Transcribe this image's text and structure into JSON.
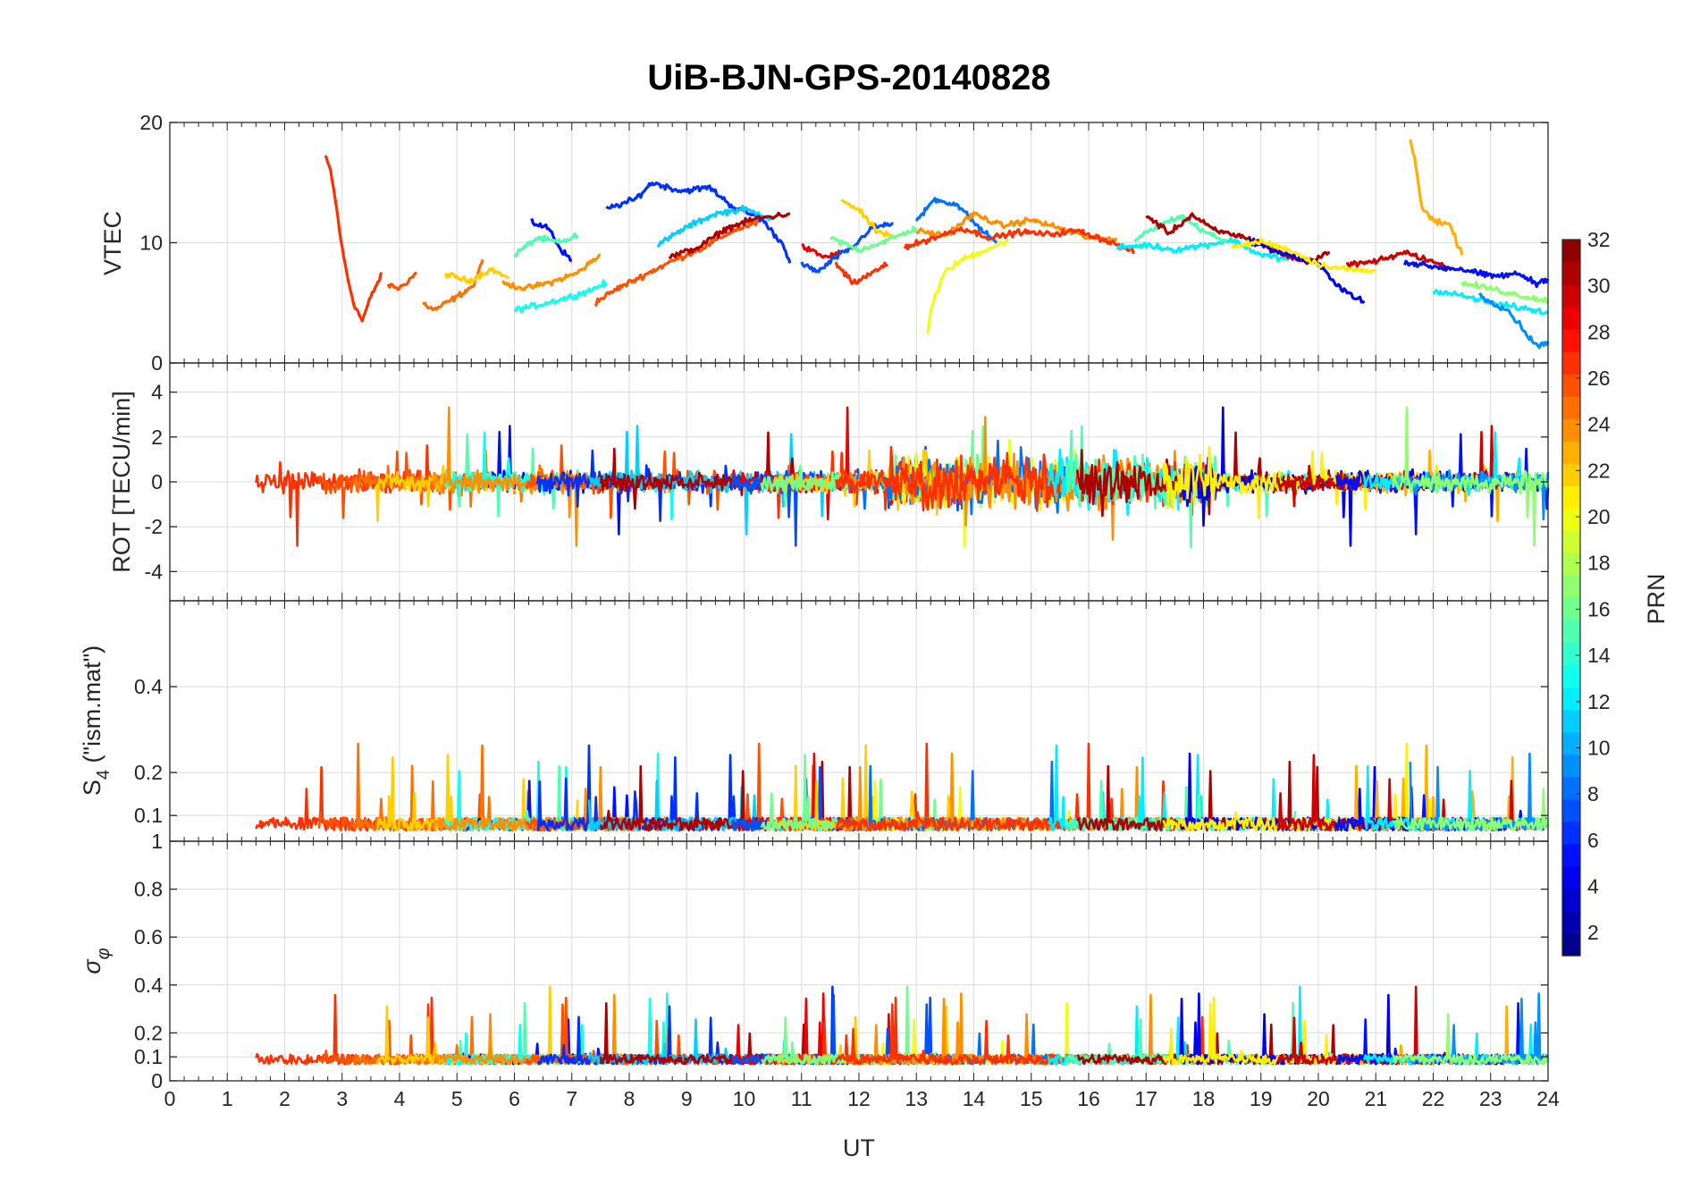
{
  "chart_data": {
    "type": "line",
    "title": "UiB-BJN-GPS-20140828",
    "xlabel": "UT",
    "xlim": [
      0,
      24
    ],
    "x_ticks": [
      "0",
      "1",
      "2",
      "3",
      "4",
      "5",
      "6",
      "7",
      "8",
      "9",
      "10",
      "11",
      "12",
      "13",
      "14",
      "15",
      "16",
      "17",
      "18",
      "19",
      "20",
      "21",
      "22",
      "23",
      "24"
    ],
    "grid": true,
    "panels": [
      {
        "id": "vtec",
        "ylabel": "VTEC",
        "ylim": [
          0,
          20
        ],
        "y_ticks": [
          {
            "v": 0,
            "label": "0"
          },
          {
            "v": 10,
            "label": "10"
          },
          {
            "v": 20,
            "label": "20"
          }
        ]
      },
      {
        "id": "rot",
        "ylabel": "ROT [TECU/min]",
        "ylim": [
          -5.3,
          5.3
        ],
        "y_ticks": [
          {
            "v": -4,
            "label": "-4"
          },
          {
            "v": -2,
            "label": "-2"
          },
          {
            "v": 0,
            "label": "0"
          },
          {
            "v": 2,
            "label": "2"
          },
          {
            "v": 4,
            "label": "4"
          }
        ]
      },
      {
        "id": "s4",
        "ylabel_main": "S",
        "ylabel_sub": "4",
        "ylabel_rest": " (\"ism.mat\")",
        "ylim": [
          0.04,
          0.6
        ],
        "y_ticks": [
          {
            "v": 0.1,
            "label": "0.1"
          },
          {
            "v": 0.2,
            "label": "0.2"
          },
          {
            "v": 0.4,
            "label": "0.4"
          }
        ]
      },
      {
        "id": "sigma",
        "ylabel_main": "σ",
        "ylabel_sub": "φ",
        "ylim": [
          0,
          1
        ],
        "y_ticks": [
          {
            "v": 0,
            "label": "0"
          },
          {
            "v": 0.1,
            "label": "0.1"
          },
          {
            "v": 0.2,
            "label": "0.2"
          },
          {
            "v": 0.4,
            "label": "0.4"
          },
          {
            "v": 0.6,
            "label": "0.6"
          },
          {
            "v": 0.8,
            "label": "0.8"
          },
          {
            "v": 1,
            "label": "1"
          }
        ]
      }
    ],
    "colorbar": {
      "label": "PRN",
      "range": [
        1,
        32
      ],
      "colormap": "jet",
      "ticks": [
        "2",
        "4",
        "6",
        "8",
        "10",
        "12",
        "14",
        "16",
        "18",
        "20",
        "22",
        "24",
        "26",
        "28",
        "30",
        "32"
      ]
    },
    "series": [
      {
        "prn": 27,
        "vtec": [
          [
            2.7,
            17.2
          ],
          [
            2.8,
            16
          ],
          [
            2.9,
            13
          ],
          [
            3.0,
            9.5
          ],
          [
            3.1,
            7
          ],
          [
            3.2,
            5
          ],
          [
            3.35,
            3.5
          ],
          [
            3.5,
            5.5
          ],
          [
            3.6,
            6.5
          ],
          [
            3.7,
            7.4
          ]
        ]
      },
      {
        "prn": 26,
        "vtec": [
          [
            3.8,
            6.5
          ],
          [
            4.0,
            6.2
          ],
          [
            4.3,
            7.5
          ]
        ]
      },
      {
        "prn": 25,
        "vtec": [
          [
            4.4,
            5.0
          ],
          [
            4.6,
            4.4
          ],
          [
            5.0,
            5.5
          ],
          [
            5.3,
            6.5
          ],
          [
            5.45,
            8.6
          ]
        ]
      },
      {
        "prn": 22,
        "vtec": [
          [
            4.8,
            7.4
          ],
          [
            5.2,
            6.8
          ],
          [
            5.6,
            7.8
          ],
          [
            5.9,
            7.0
          ]
        ]
      },
      {
        "prn": 5,
        "vtec": [
          [
            6.3,
            11.7
          ],
          [
            6.6,
            11.2
          ],
          [
            6.8,
            9.5
          ],
          [
            7.0,
            8.5
          ]
        ]
      },
      {
        "prn": 15,
        "vtec": [
          [
            6.0,
            9.0
          ],
          [
            6.4,
            10.4
          ],
          [
            6.8,
            10.0
          ],
          [
            7.1,
            10.6
          ]
        ]
      },
      {
        "prn": 13,
        "vtec": [
          [
            6.0,
            4.4
          ],
          [
            6.4,
            4.8
          ],
          [
            6.9,
            5.4
          ],
          [
            7.3,
            6.0
          ],
          [
            7.6,
            6.7
          ]
        ]
      },
      {
        "prn": 24,
        "vtec": [
          [
            5.8,
            6.6
          ],
          [
            6.2,
            6.2
          ],
          [
            6.7,
            6.8
          ],
          [
            7.1,
            7.5
          ],
          [
            7.5,
            9.0
          ]
        ]
      },
      {
        "prn": 26,
        "vtec": [
          [
            7.4,
            5.0
          ],
          [
            7.8,
            6.2
          ],
          [
            8.3,
            7.4
          ],
          [
            8.8,
            8.6
          ],
          [
            9.3,
            9.6
          ],
          [
            9.8,
            11.0
          ],
          [
            10.3,
            11.8
          ]
        ]
      },
      {
        "prn": 6,
        "vtec": [
          [
            7.6,
            12.8
          ],
          [
            8.1,
            13.6
          ],
          [
            8.4,
            15.0
          ],
          [
            8.9,
            14.3
          ],
          [
            9.4,
            14.6
          ],
          [
            9.8,
            13.0
          ],
          [
            10.3,
            12.0
          ],
          [
            10.7,
            9.7
          ],
          [
            10.8,
            8.3
          ]
        ]
      },
      {
        "prn": 11,
        "vtec": [
          [
            8.5,
            9.8
          ],
          [
            9.0,
            11.3
          ],
          [
            9.5,
            12.4
          ],
          [
            10.0,
            12.8
          ],
          [
            10.5,
            12.0
          ]
        ]
      },
      {
        "prn": 31,
        "vtec": [
          [
            8.7,
            8.8
          ],
          [
            9.2,
            9.6
          ],
          [
            9.7,
            11.2
          ],
          [
            10.2,
            12.0
          ],
          [
            10.8,
            12.4
          ]
        ]
      },
      {
        "prn": 29,
        "vtec": [
          [
            11.0,
            9.7
          ],
          [
            11.4,
            8.8
          ],
          [
            11.7,
            9.2
          ]
        ]
      },
      {
        "prn": 7,
        "vtec": [
          [
            11.0,
            8.2
          ],
          [
            11.3,
            7.6
          ],
          [
            11.6,
            8.8
          ],
          [
            11.9,
            9.6
          ],
          [
            12.2,
            11.2
          ],
          [
            12.6,
            11.6
          ]
        ]
      },
      {
        "prn": 27,
        "vtec": [
          [
            11.6,
            8.2
          ],
          [
            11.9,
            6.6
          ],
          [
            12.2,
            7.4
          ],
          [
            12.5,
            8.2
          ]
        ]
      },
      {
        "prn": 22,
        "vtec": [
          [
            11.7,
            13.6
          ],
          [
            12.0,
            12.7
          ],
          [
            12.3,
            11.0
          ],
          [
            12.6,
            10.4
          ]
        ]
      },
      {
        "prn": 16,
        "vtec": [
          [
            11.5,
            10.4
          ],
          [
            12.0,
            9.4
          ],
          [
            12.5,
            10.2
          ],
          [
            13.0,
            11.2
          ]
        ]
      },
      {
        "prn": 20,
        "vtec": [
          [
            13.2,
            2.4
          ],
          [
            13.25,
            4.5
          ],
          [
            13.5,
            7.6
          ],
          [
            13.8,
            8.6
          ],
          [
            14.2,
            9.4
          ],
          [
            14.6,
            10.2
          ]
        ]
      },
      {
        "prn": 8,
        "vtec": [
          [
            13.0,
            11.7
          ],
          [
            13.3,
            13.6
          ],
          [
            13.7,
            13.2
          ],
          [
            14.1,
            11.2
          ],
          [
            14.4,
            10.0
          ]
        ]
      },
      {
        "prn": 24,
        "vtec": [
          [
            13.0,
            11.0
          ],
          [
            13.5,
            10.6
          ],
          [
            14.0,
            12.4
          ],
          [
            14.5,
            11.4
          ],
          [
            15.0,
            11.9
          ],
          [
            15.5,
            11.2
          ],
          [
            16.0,
            10.4
          ],
          [
            16.5,
            10.3
          ]
        ]
      },
      {
        "prn": 27,
        "vtec": [
          [
            12.8,
            9.6
          ],
          [
            13.3,
            10.4
          ],
          [
            13.8,
            11.2
          ],
          [
            14.3,
            10.4
          ],
          [
            14.8,
            10.9
          ],
          [
            15.3,
            10.7
          ],
          [
            15.8,
            11.0
          ],
          [
            16.3,
            10.2
          ],
          [
            16.8,
            9.2
          ]
        ]
      },
      {
        "prn": 12,
        "vtec": [
          [
            16.5,
            9.6
          ],
          [
            17.0,
            9.8
          ],
          [
            17.5,
            9.4
          ],
          [
            18.0,
            9.8
          ],
          [
            18.5,
            10.2
          ],
          [
            19.0,
            9.0
          ],
          [
            19.5,
            8.6
          ]
        ]
      },
      {
        "prn": 15,
        "vtec": [
          [
            16.8,
            10.2
          ],
          [
            17.2,
            11.4
          ],
          [
            17.6,
            12.2
          ],
          [
            18.0,
            11.0
          ],
          [
            18.4,
            10.0
          ]
        ]
      },
      {
        "prn": 31,
        "vtec": [
          [
            17.0,
            12.3
          ],
          [
            17.4,
            10.8
          ],
          [
            17.8,
            12.3
          ],
          [
            18.2,
            11.0
          ],
          [
            18.6,
            10.6
          ],
          [
            19.0,
            10.0
          ],
          [
            19.4,
            9.0
          ],
          [
            19.8,
            8.4
          ],
          [
            20.2,
            9.2
          ]
        ]
      },
      {
        "prn": 4,
        "vtec": [
          [
            18.8,
            10.2
          ],
          [
            19.2,
            9.4
          ],
          [
            19.6,
            8.8
          ],
          [
            20.0,
            8.2
          ],
          [
            20.4,
            6.2
          ],
          [
            20.8,
            5.0
          ]
        ]
      },
      {
        "prn": 21,
        "vtec": [
          [
            18.5,
            9.6
          ],
          [
            19.0,
            10.1
          ],
          [
            19.5,
            9.4
          ],
          [
            20.0,
            8.2
          ],
          [
            20.5,
            7.8
          ],
          [
            21.0,
            7.6
          ]
        ]
      },
      {
        "prn": 23,
        "vtec": [
          [
            21.6,
            18.6
          ],
          [
            21.7,
            16.5
          ],
          [
            21.8,
            13.0
          ],
          [
            22.0,
            11.8
          ],
          [
            22.3,
            11.4
          ],
          [
            22.5,
            9.0
          ]
        ]
      },
      {
        "prn": 30,
        "vtec": [
          [
            20.5,
            8.2
          ],
          [
            21.0,
            8.4
          ],
          [
            21.5,
            9.2
          ],
          [
            21.9,
            8.6
          ],
          [
            22.3,
            7.8
          ]
        ]
      },
      {
        "prn": 5,
        "vtec": [
          [
            21.5,
            8.4
          ],
          [
            22.0,
            8.0
          ],
          [
            22.5,
            7.8
          ],
          [
            23.0,
            7.2
          ],
          [
            23.5,
            7.4
          ],
          [
            23.8,
            6.6
          ],
          [
            24.0,
            7.0
          ]
        ]
      },
      {
        "prn": 12,
        "vtec": [
          [
            22.0,
            6.0
          ],
          [
            22.5,
            5.6
          ],
          [
            23.0,
            5.0
          ],
          [
            23.5,
            4.6
          ],
          [
            24.0,
            4.2
          ]
        ]
      },
      {
        "prn": 9,
        "vtec": [
          [
            22.8,
            5.6
          ],
          [
            23.3,
            4.4
          ],
          [
            23.6,
            2.6
          ],
          [
            23.8,
            1.4
          ],
          [
            24.0,
            1.8
          ]
        ]
      },
      {
        "prn": 17,
        "vtec": [
          [
            22.5,
            6.6
          ],
          [
            23.0,
            6.2
          ],
          [
            23.5,
            5.6
          ],
          [
            24.0,
            5.2
          ]
        ]
      }
    ]
  }
}
